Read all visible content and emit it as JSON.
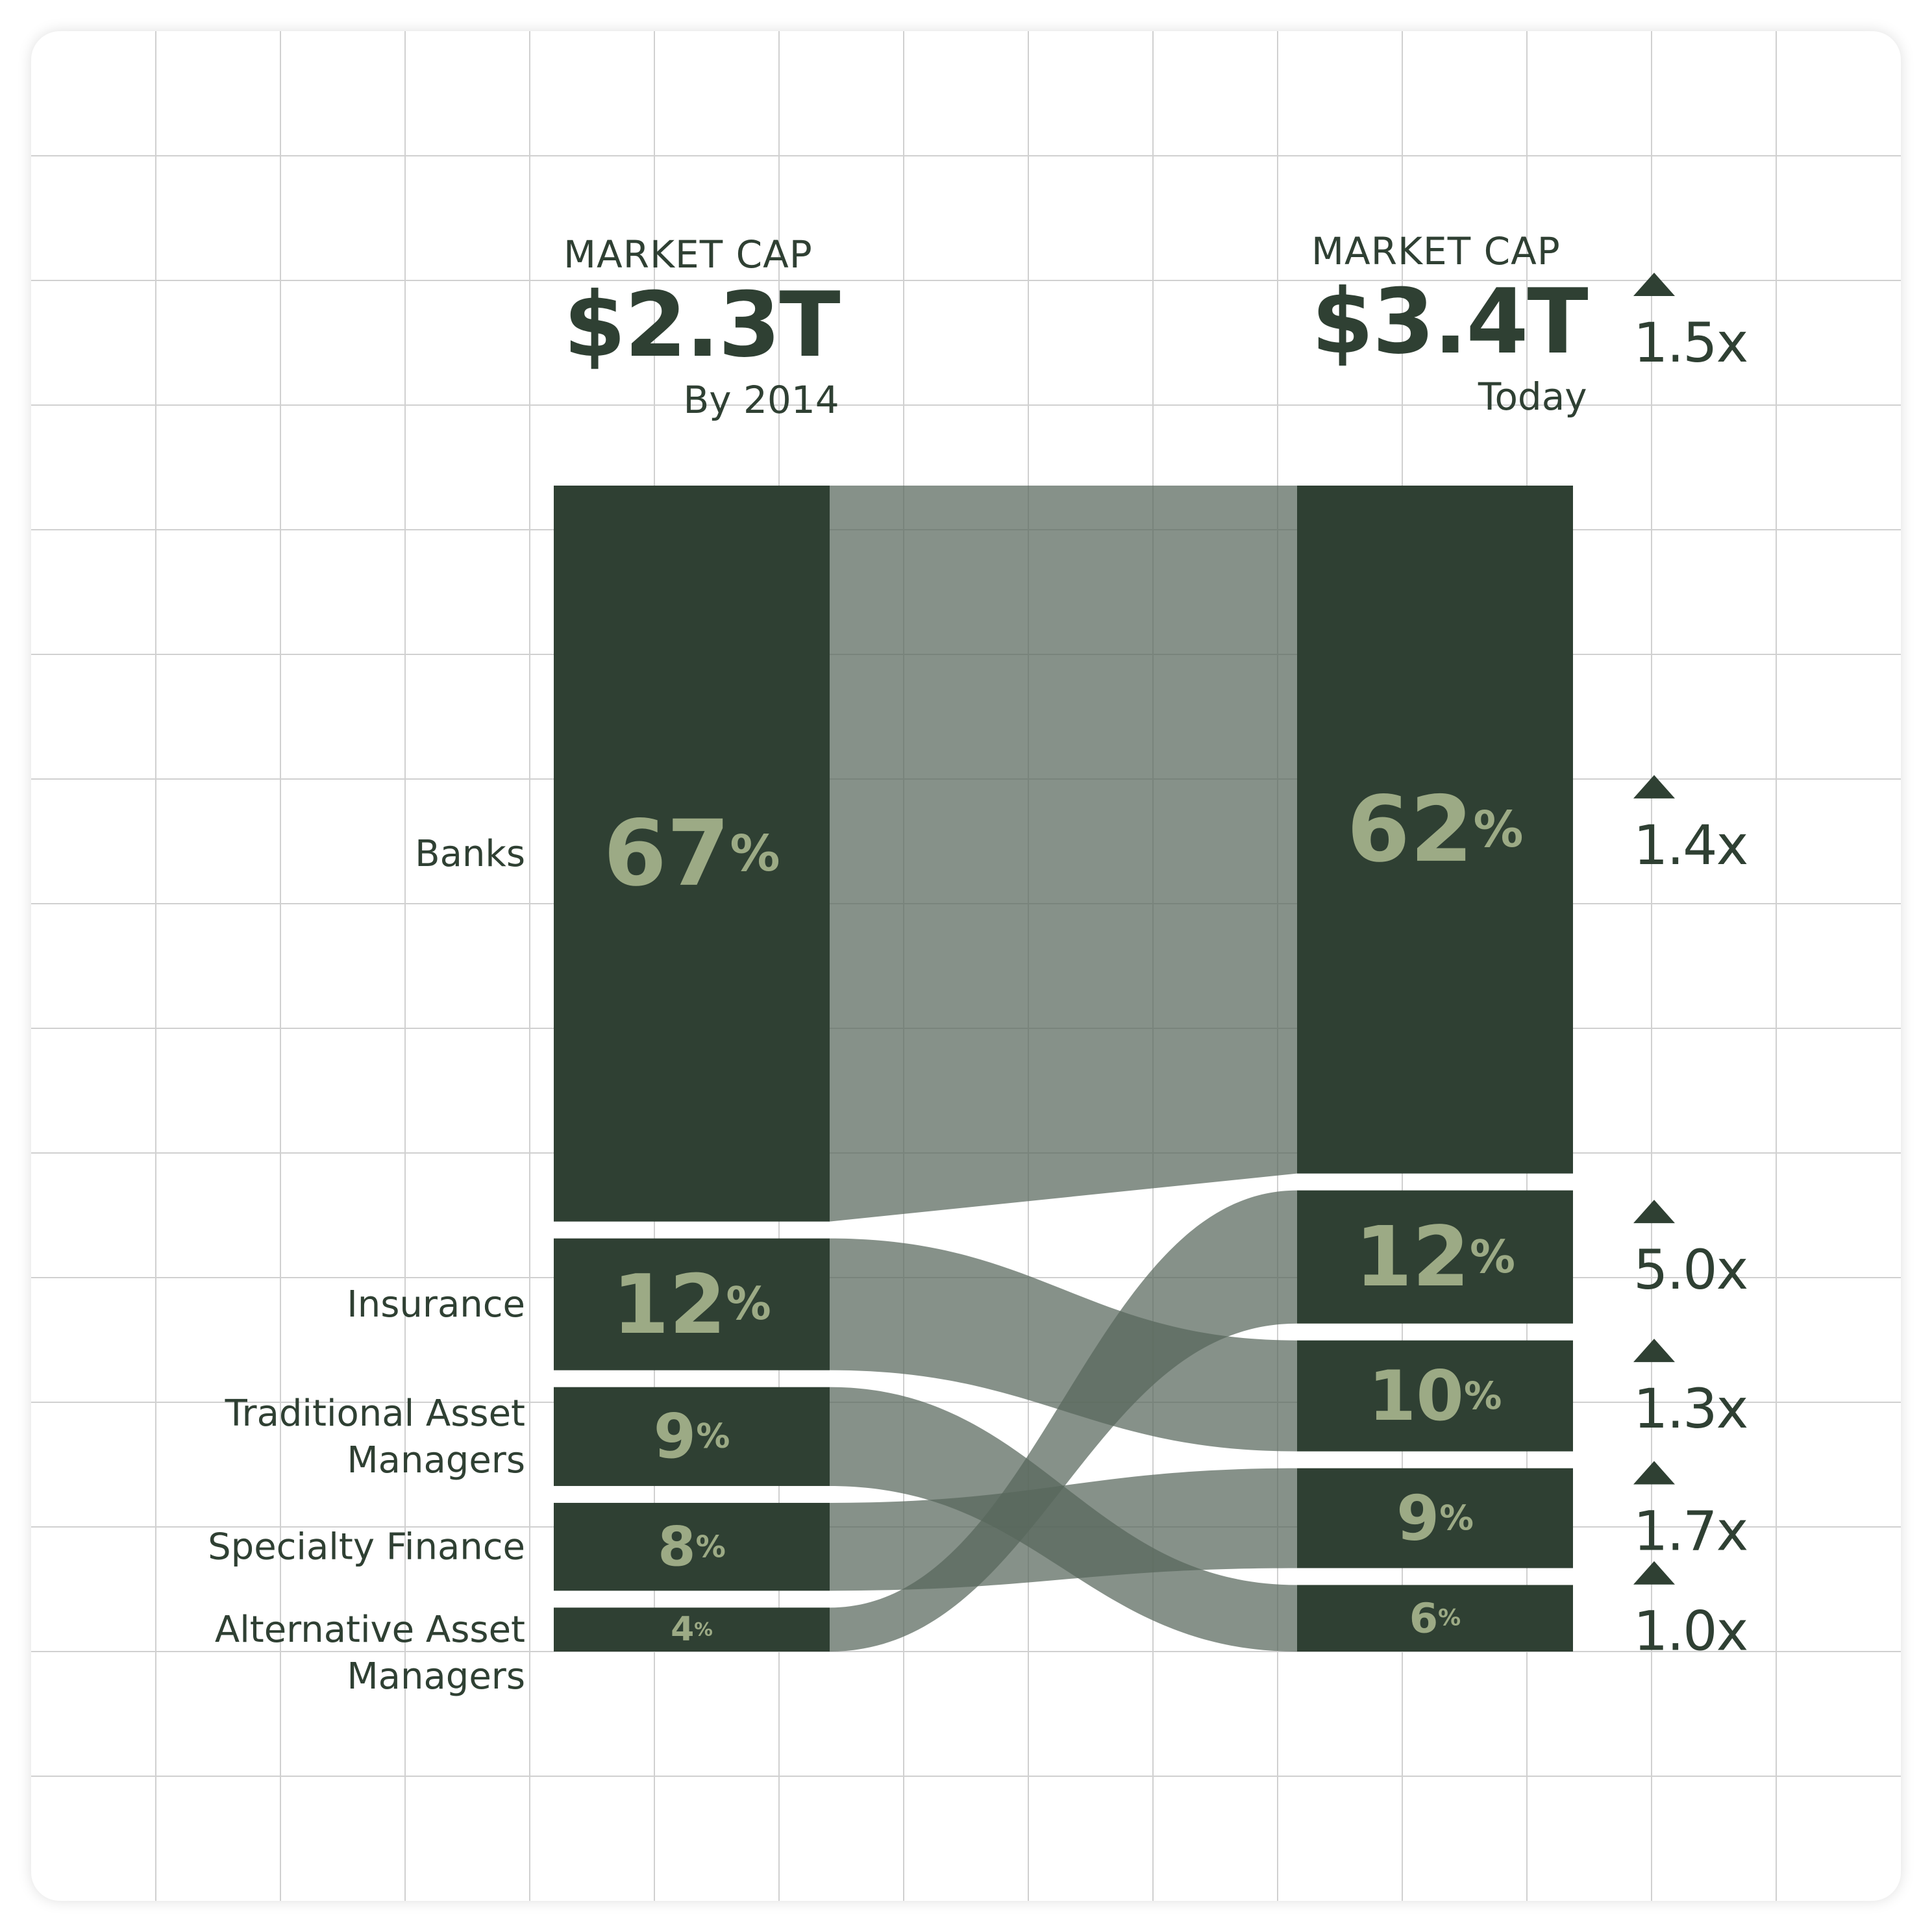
{
  "colors": {
    "block": "#2f4033",
    "flow": "#57665b",
    "percent_text": "#9caa85",
    "text": "#2f4033",
    "grid": "#d0d0d0",
    "background": "#ffffff"
  },
  "headers": {
    "left": {
      "label": "MARKET CAP",
      "value": "$2.3T",
      "sub": "By 2014"
    },
    "right": {
      "label": "MARKET CAP",
      "value": "$3.4T",
      "sub": "Today",
      "multiplier": "1.5x"
    }
  },
  "chart_data": {
    "type": "sankey",
    "left_total": "$2.3T",
    "right_total": "$3.4T",
    "total_growth": "1.5x",
    "categories": [
      "Banks",
      "Insurance",
      "Traditional Asset\nManagers",
      "Specialty Finance",
      "Alternative Asset\nManagers"
    ],
    "left_values": [
      67,
      12,
      9,
      8,
      4
    ],
    "right_values": [
      62,
      10,
      6,
      9,
      12
    ],
    "right_order": [
      "Banks",
      "Alternative Asset Managers",
      "Insurance",
      "Specialty Finance",
      "Traditional Asset Managers"
    ],
    "right_stack_values": [
      62,
      12,
      10,
      9,
      6
    ],
    "growth_multipliers": [
      "1.4x",
      "5.0x",
      "1.3x",
      "1.7x",
      "1.0x"
    ],
    "flows": [
      {
        "from": 0,
        "to": 0
      },
      {
        "from": 1,
        "to": 2
      },
      {
        "from": 2,
        "to": 4
      },
      {
        "from": 3,
        "to": 3
      },
      {
        "from": 4,
        "to": 1
      }
    ],
    "value_suffix": "%"
  }
}
